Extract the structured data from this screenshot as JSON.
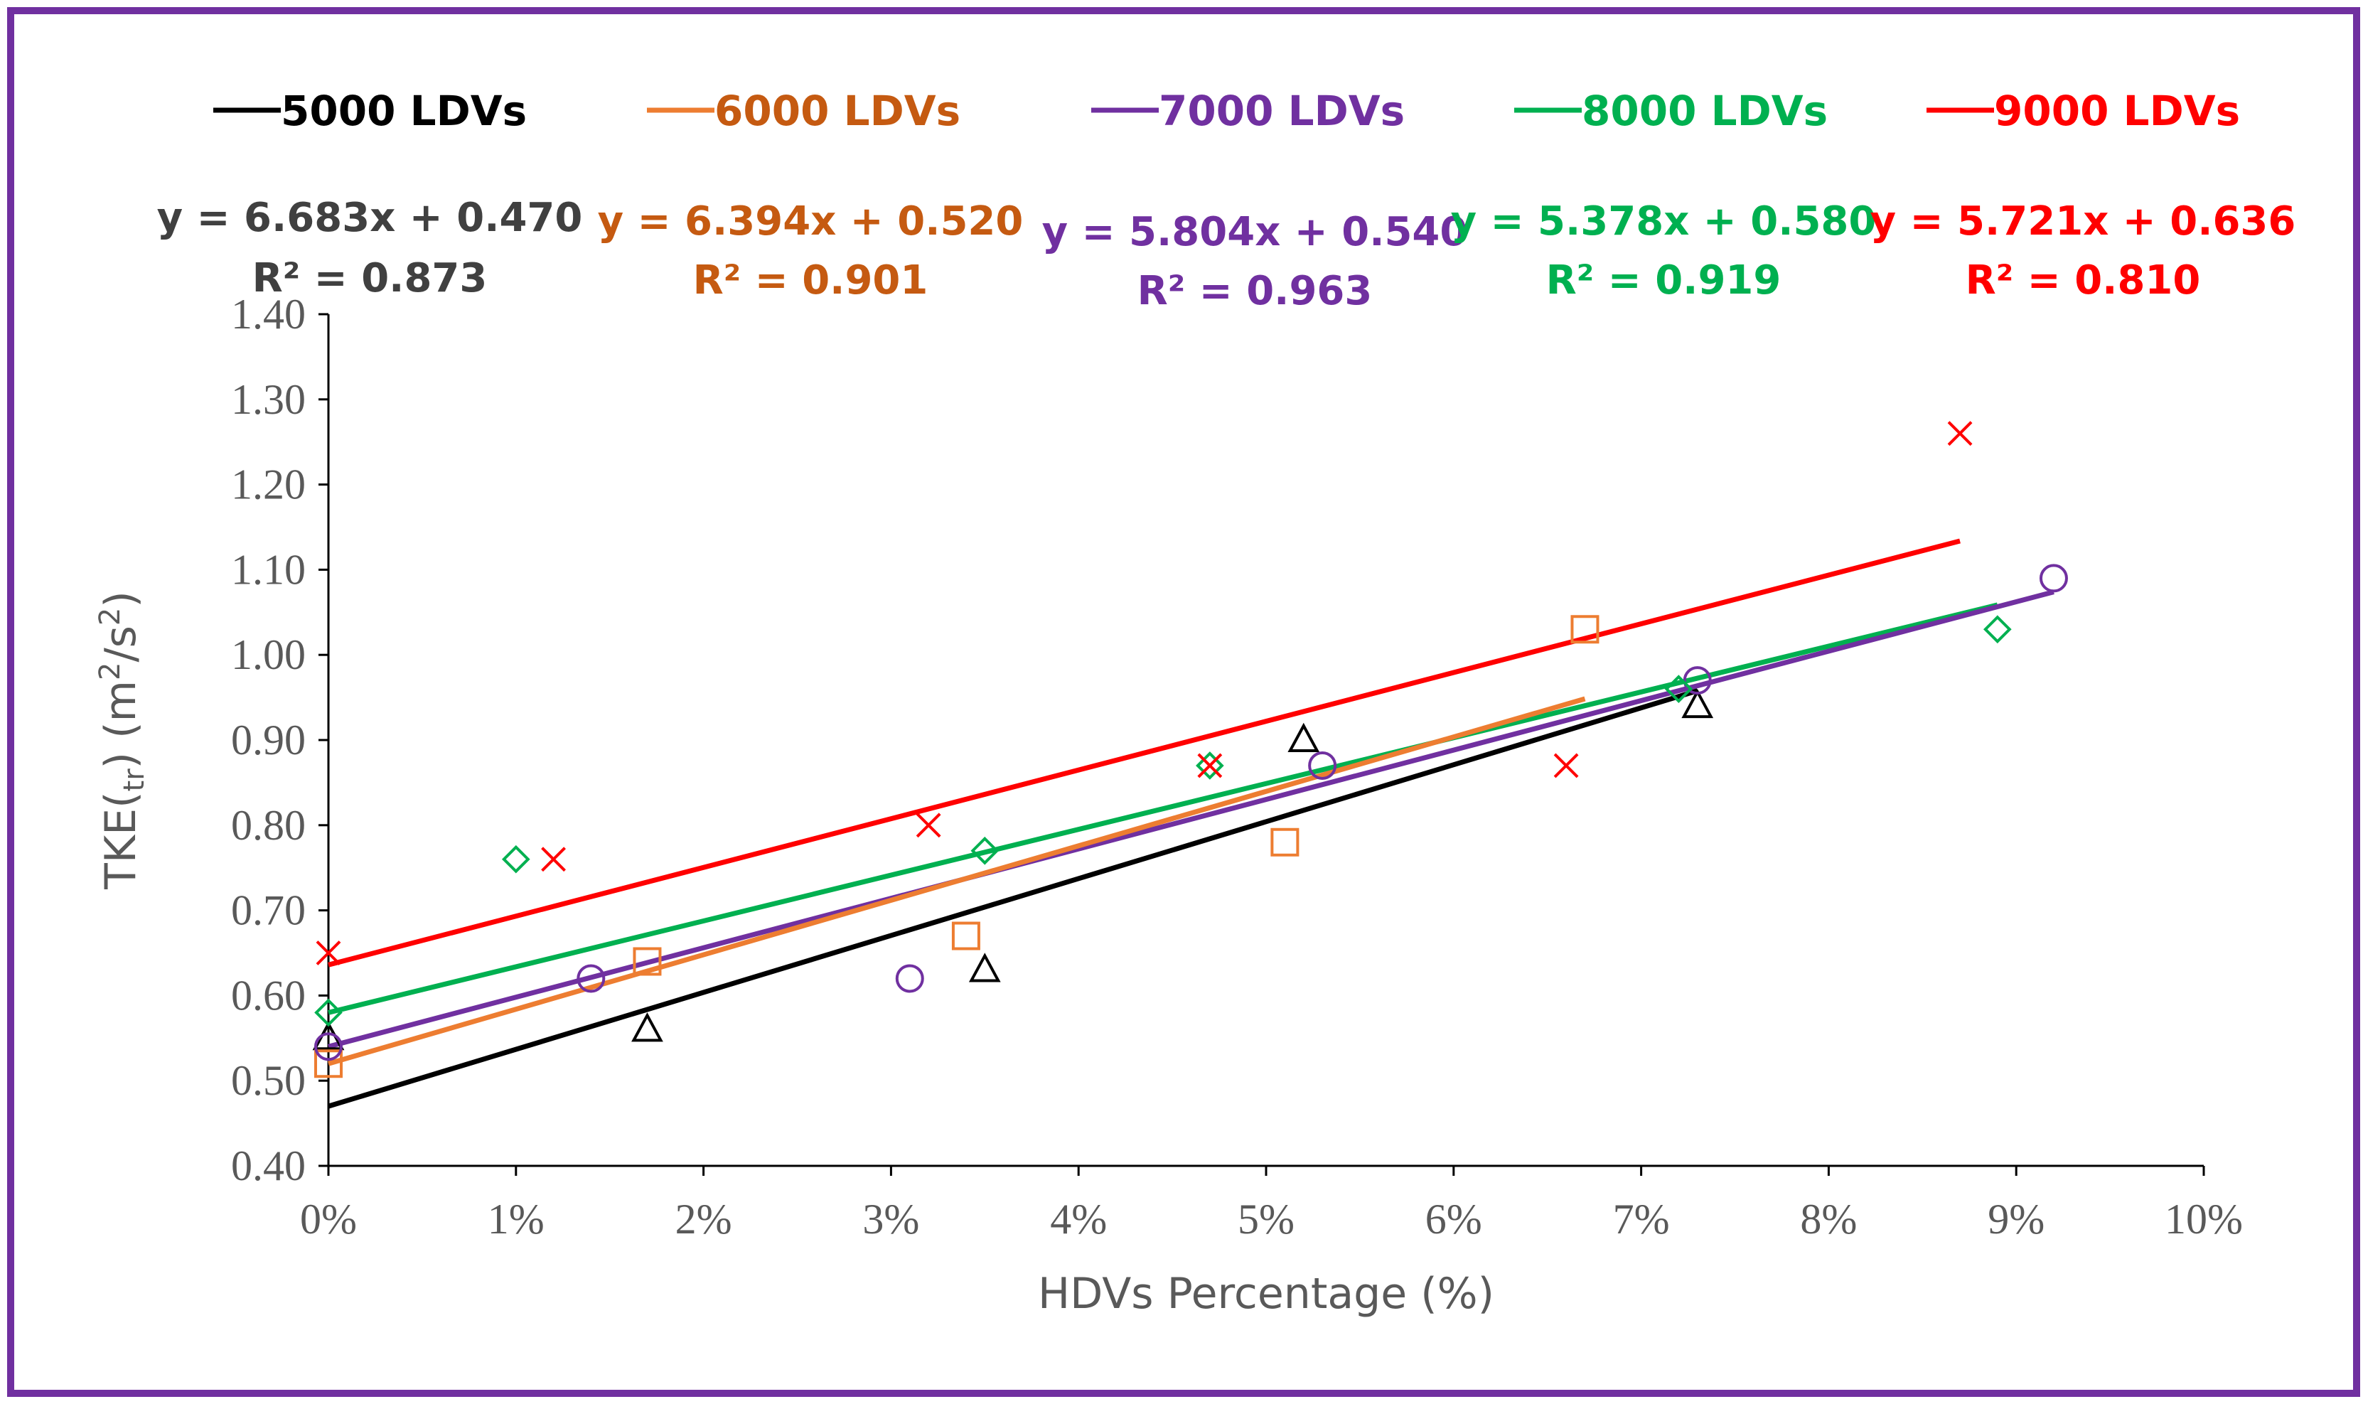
{
  "chart_data": {
    "type": "scatter",
    "title": "",
    "xlabel": "HDVs Percentage (%)",
    "ylabel_main": "TKE(",
    "ylabel_sub": "tr",
    "ylabel_unit_open": ") (m",
    "ylabel_sup1": "2",
    "ylabel_mid": "/s",
    "ylabel_sup2": "2",
    "ylabel_close": ")",
    "xlim": [
      0,
      10
    ],
    "ylim": [
      0.4,
      1.4
    ],
    "xticks": [
      0,
      1,
      2,
      3,
      4,
      5,
      6,
      7,
      8,
      9,
      10
    ],
    "xtick_labels": [
      "0%",
      "1%",
      "2%",
      "3%",
      "4%",
      "5%",
      "6%",
      "7%",
      "8%",
      "9%",
      "10%"
    ],
    "yticks": [
      0.4,
      0.5,
      0.6,
      0.7,
      0.8,
      0.9,
      1.0,
      1.1,
      1.2,
      1.3,
      1.4
    ],
    "ytick_labels": [
      "0.40",
      "0.50",
      "0.60",
      "0.70",
      "0.80",
      "0.90",
      "1.00",
      "1.10",
      "1.20",
      "1.30",
      "1.40"
    ],
    "legend_position": "top",
    "series": [
      {
        "name": "5000 LDVs",
        "color": "#000000",
        "marker": "triangle",
        "equation": "y = 6.683x + 0.470",
        "r2": "R² = 0.873",
        "slope": 6.683,
        "intercept": 0.47,
        "fit_range": [
          0,
          7.3
        ],
        "points": [
          [
            0,
            0.55
          ],
          [
            1.7,
            0.56
          ],
          [
            3.5,
            0.63
          ],
          [
            5.2,
            0.9
          ],
          [
            7.3,
            0.94
          ]
        ]
      },
      {
        "name": "6000 LDVs",
        "color": "#ed7d31",
        "label_color": "#c55a11",
        "marker": "square",
        "equation": "y = 6.394x + 0.520",
        "r2": "R² = 0.901",
        "slope": 6.394,
        "intercept": 0.52,
        "fit_range": [
          0,
          6.7
        ],
        "points": [
          [
            0,
            0.52
          ],
          [
            1.7,
            0.64
          ],
          [
            3.4,
            0.67
          ],
          [
            5.1,
            0.78
          ],
          [
            6.7,
            1.03
          ]
        ]
      },
      {
        "name": "7000 LDVs",
        "color": "#7030a0",
        "marker": "circle",
        "equation": "y = 5.804x + 0.540",
        "r2": "R² = 0.963",
        "slope": 5.804,
        "intercept": 0.54,
        "fit_range": [
          0,
          9.2
        ],
        "points": [
          [
            0,
            0.54
          ],
          [
            1.4,
            0.62
          ],
          [
            3.1,
            0.62
          ],
          [
            5.3,
            0.87
          ],
          [
            7.3,
            0.97
          ],
          [
            9.2,
            1.09
          ]
        ]
      },
      {
        "name": "8000 LDVs",
        "color": "#00b050",
        "marker": "diamond",
        "equation": "y = 5.378x + 0.580",
        "r2": "R² = 0.919",
        "slope": 5.378,
        "intercept": 0.58,
        "fit_range": [
          0,
          8.9
        ],
        "points": [
          [
            0,
            0.58
          ],
          [
            1.0,
            0.76
          ],
          [
            3.5,
            0.77
          ],
          [
            4.7,
            0.87
          ],
          [
            7.2,
            0.96
          ],
          [
            8.9,
            1.03
          ]
        ]
      },
      {
        "name": "9000 LDVs",
        "color": "#ff0000",
        "marker": "x",
        "equation": "y = 5.721x + 0.636",
        "r2": "R² = 0.810",
        "slope": 5.721,
        "intercept": 0.636,
        "fit_range": [
          0,
          8.7
        ],
        "points": [
          [
            0,
            0.65
          ],
          [
            1.2,
            0.76
          ],
          [
            3.2,
            0.8
          ],
          [
            4.7,
            0.87
          ],
          [
            6.6,
            0.87
          ],
          [
            8.7,
            1.26
          ]
        ]
      }
    ]
  }
}
